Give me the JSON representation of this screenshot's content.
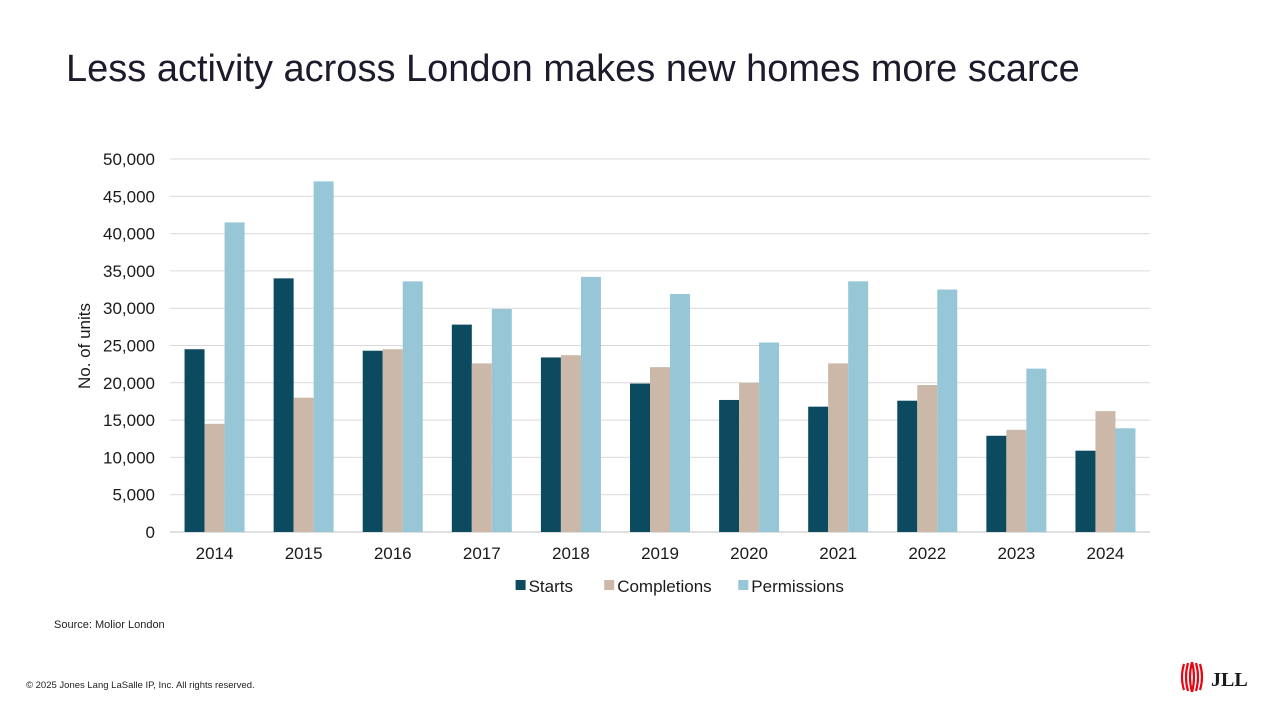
{
  "slide": {
    "title": "Less activity across London makes new homes more scarce",
    "source": "Source: Molior London",
    "copyright": "© 2025 Jones Lang LaSalle IP, Inc. All rights reserved.",
    "logo_text": "JLL"
  },
  "chart_data": {
    "type": "bar",
    "title": "",
    "xlabel": "",
    "ylabel": "No. of units",
    "ylim": [
      0,
      50000
    ],
    "yticks": [
      0,
      5000,
      10000,
      15000,
      20000,
      25000,
      30000,
      35000,
      40000,
      45000,
      50000
    ],
    "ytick_labels": [
      "0",
      "5,000",
      "10,000",
      "15,000",
      "20,000",
      "25,000",
      "30,000",
      "35,000",
      "40,000",
      "45,000",
      "50,000"
    ],
    "grid": true,
    "legend_position": "bottom",
    "categories": [
      "2014",
      "2015",
      "2016",
      "2017",
      "2018",
      "2019",
      "2020",
      "2021",
      "2022",
      "2023",
      "2024"
    ],
    "series": [
      {
        "name": "Starts",
        "color": "#0c4a60",
        "values": [
          24500,
          34000,
          24300,
          27800,
          23400,
          19900,
          17700,
          16800,
          17600,
          12900,
          10900
        ]
      },
      {
        "name": "Completions",
        "color": "#cbb8a8",
        "values": [
          14500,
          18000,
          24500,
          22600,
          23700,
          22100,
          20000,
          22600,
          19700,
          13700,
          16200
        ]
      },
      {
        "name": "Permissions",
        "color": "#97c6d6",
        "values": [
          41500,
          47000,
          33600,
          29900,
          34200,
          31900,
          25400,
          33600,
          32500,
          21900,
          13900
        ]
      }
    ]
  }
}
